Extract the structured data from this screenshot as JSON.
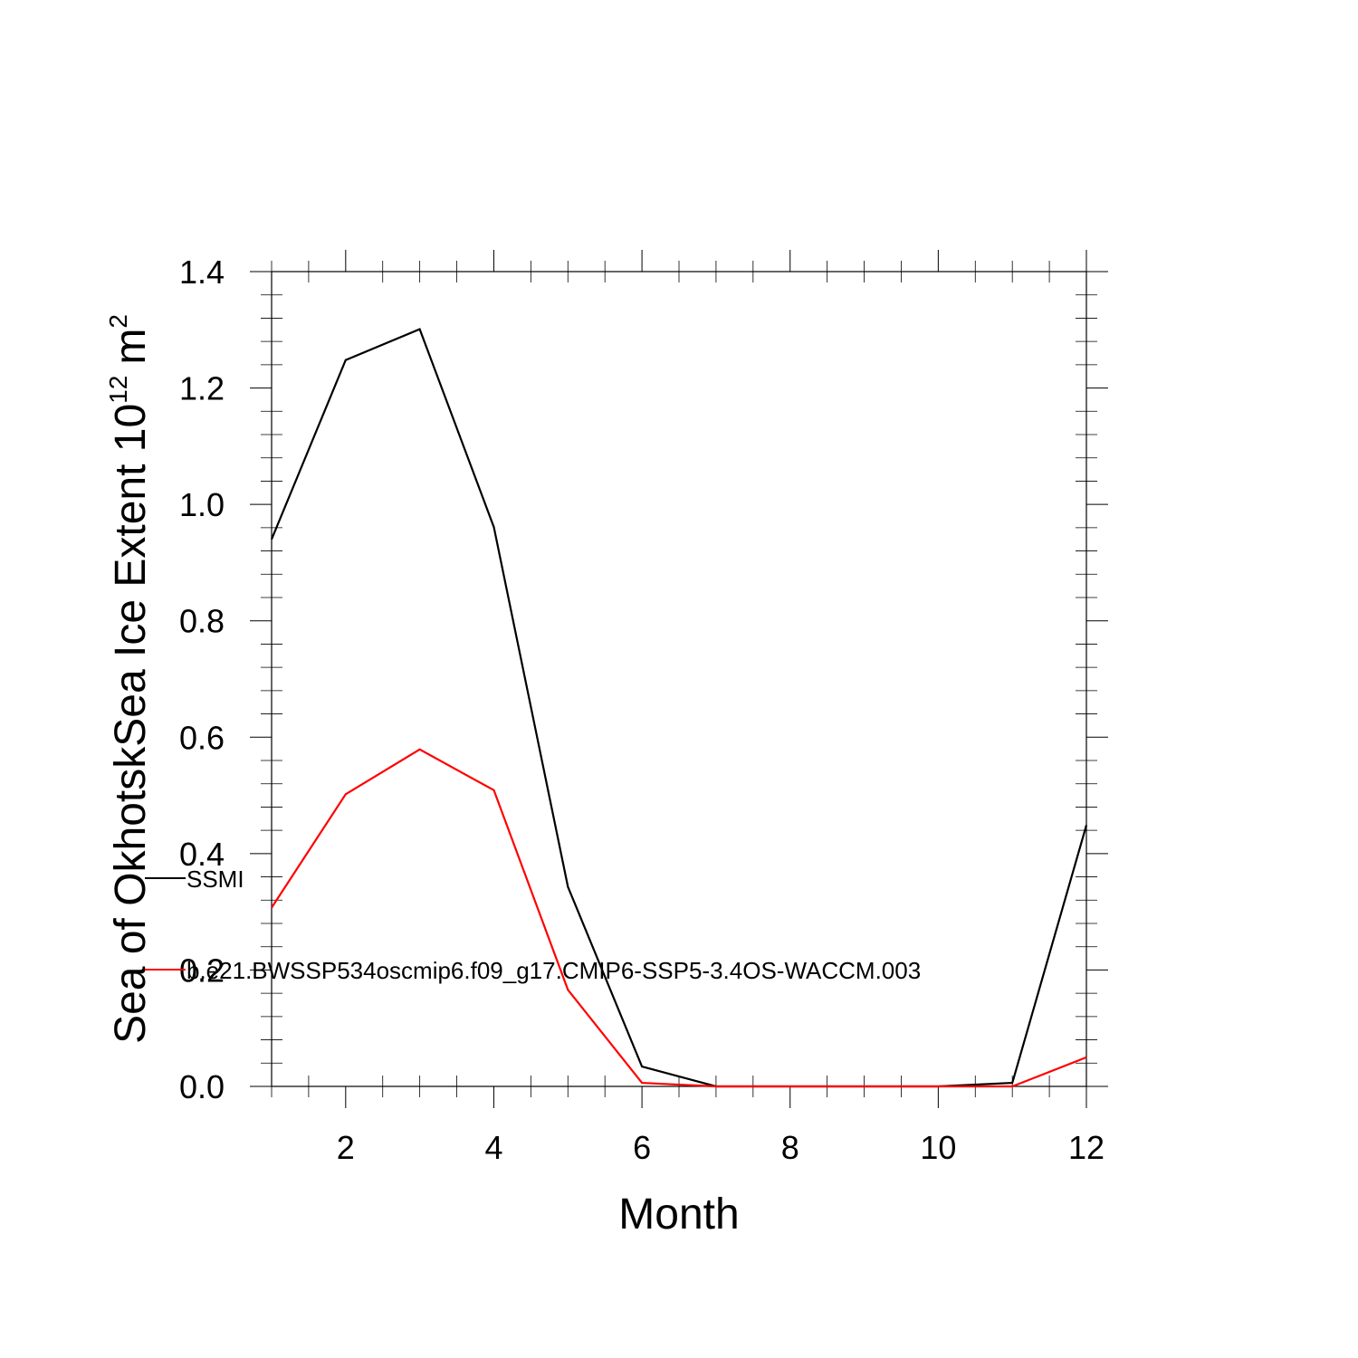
{
  "chart_data": {
    "type": "line",
    "title": "",
    "xlabel": "Month",
    "ylabel": {
      "main": "Sea of OkhotskSea Ice Extent 10",
      "exponent": "12",
      "unit": "m",
      "unit_exponent": "2"
    },
    "xlim": [
      1,
      12
    ],
    "ylim": [
      0,
      1.4
    ],
    "x": [
      1,
      2,
      3,
      4,
      5,
      6,
      7,
      8,
      9,
      10,
      11,
      12
    ],
    "x_ticks": [
      2,
      4,
      6,
      8,
      10,
      12
    ],
    "x_tick_labels": [
      "2",
      "4",
      "6",
      "8",
      "10",
      "12"
    ],
    "y_ticks": [
      0,
      0.2,
      0.4,
      0.6,
      0.8,
      1.0,
      1.2,
      1.4
    ],
    "y_tick_labels": [
      "0.0",
      "0.2",
      "0.4",
      "0.6",
      "0.8",
      "1.0",
      "1.2",
      "1.4"
    ],
    "grid": false,
    "legend_placement": "left",
    "series": [
      {
        "name": "SSMI",
        "color": "#000000",
        "values": [
          0.94,
          1.248,
          1.301,
          0.961,
          0.343,
          0.034,
          0.0,
          0.0,
          0.0,
          0.0,
          0.006,
          0.449
        ]
      },
      {
        "name": "b.e21.BWSSP534oscmip6.f09_g17.CMIP6-SSP5-3.4OS-WACCM.003",
        "color": "#ff0000",
        "values": [
          0.307,
          0.502,
          0.579,
          0.509,
          0.166,
          0.006,
          0.0,
          0.0,
          0.0,
          0.0,
          0.0,
          0.05
        ]
      }
    ]
  }
}
